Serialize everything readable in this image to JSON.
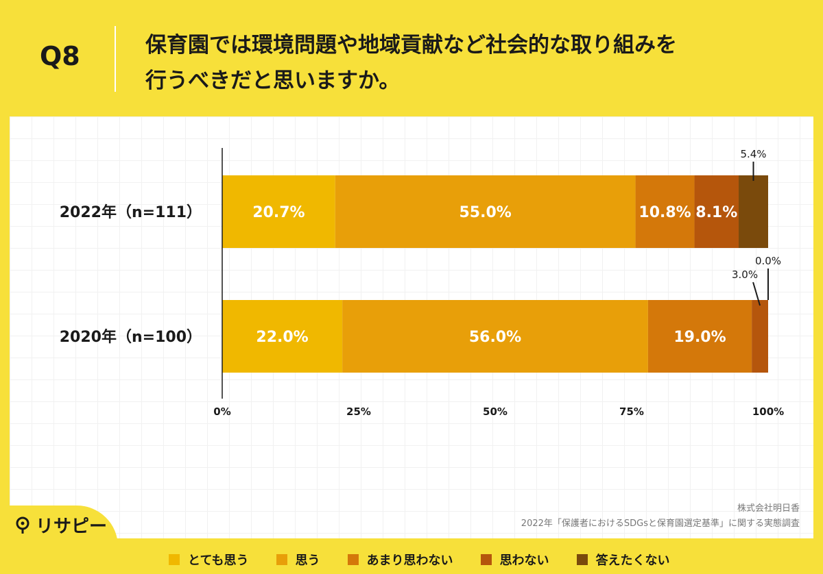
{
  "header": {
    "q_label": "Q8",
    "question_line1": "保育園では環境問題や地域貢献など社会的な取り組みを",
    "question_line2": "行うべきだと思いますか。"
  },
  "chart_data": {
    "type": "bar",
    "orientation": "horizontal-stacked-100",
    "categories": [
      "2022年（n=111）",
      "2020年（n=100）"
    ],
    "series": [
      {
        "name": "とても思う",
        "color": "#f0b800",
        "values": [
          20.7,
          22.0
        ],
        "labels": [
          "20.7%",
          "22.0%"
        ]
      },
      {
        "name": "思う",
        "color": "#e89f09",
        "values": [
          55.0,
          56.0
        ],
        "labels": [
          "55.0%",
          "56.0%"
        ]
      },
      {
        "name": "あまり思わない",
        "color": "#d4780a",
        "values": [
          10.8,
          19.0
        ],
        "labels": [
          "10.8%",
          "19.0%"
        ]
      },
      {
        "name": "思わない",
        "color": "#b5560c",
        "values": [
          8.1,
          3.0
        ],
        "labels": [
          "8.1%",
          "3.0%"
        ]
      },
      {
        "name": "答えたくない",
        "color": "#7a4a0c",
        "values": [
          5.4,
          0.0
        ],
        "labels": [
          "5.4%",
          "0.0%"
        ]
      }
    ],
    "x_ticks": [
      "0%",
      "25%",
      "50%",
      "75%",
      "100%"
    ],
    "xlim": [
      0,
      100
    ],
    "legend": "bottom"
  },
  "logo": {
    "text": "リサピー"
  },
  "source": {
    "line1": "株式会社明日香",
    "line2": "2022年「保護者におけるSDGsと保育園選定基準」に関する実態調査"
  }
}
